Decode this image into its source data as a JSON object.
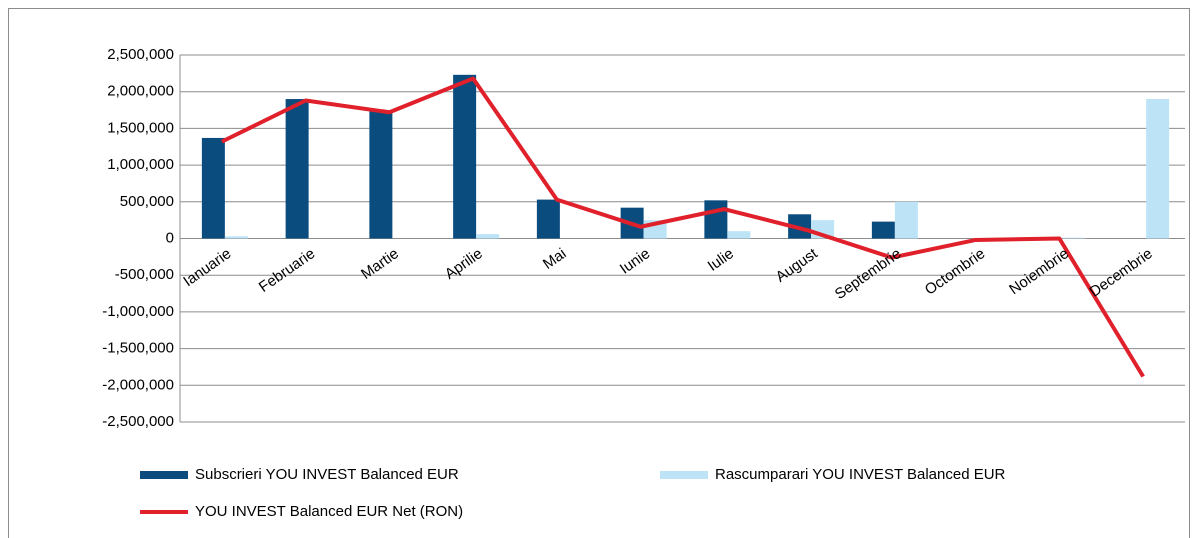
{
  "chart_data": {
    "type": "bar_line",
    "categories": [
      "Ianuarie",
      "Februarie",
      "Martie",
      "Aprilie",
      "Mai",
      "Iunie",
      "Iulie",
      "August",
      "Septembrie",
      "Octombrie",
      "Noiembrie",
      "Decembrie"
    ],
    "series": [
      {
        "name": "Subscrieri YOU INVEST Balanced EUR",
        "color": "#0b4c7f",
        "kind": "bar",
        "values": [
          1370000,
          1900000,
          1730000,
          2230000,
          530000,
          420000,
          520000,
          330000,
          230000,
          0,
          0,
          0
        ]
      },
      {
        "name": "Rascumparari YOU INVEST Balanced EUR",
        "color": "#bde3f7",
        "kind": "bar",
        "values": [
          30000,
          0,
          0,
          60000,
          0,
          250000,
          100000,
          250000,
          500000,
          0,
          10000,
          1900000
        ]
      },
      {
        "name": "YOU INVEST Balanced EUR Net (RON)",
        "color": "#e0202a",
        "kind": "line",
        "values": [
          1320000,
          1880000,
          1720000,
          2180000,
          530000,
          160000,
          400000,
          110000,
          -260000,
          -20000,
          0,
          -1880000
        ]
      }
    ],
    "ylim": [
      -2500000,
      2500000
    ],
    "yticks": [
      {
        "value": -2500000,
        "label": "-2,500,000"
      },
      {
        "value": -2000000,
        "label": "-2,000,000"
      },
      {
        "value": -1500000,
        "label": "-1,500,000"
      },
      {
        "value": -1000000,
        "label": "-1,000,000"
      },
      {
        "value": -500000,
        "label": "-500,000"
      },
      0,
      {
        "value": 500000,
        "label": "500,000"
      },
      {
        "value": 1000000,
        "label": "1,000,000"
      },
      {
        "value": 1500000,
        "label": "1,500,000"
      },
      {
        "value": 2000000,
        "label": "2,000,000"
      },
      {
        "value": 2500000,
        "label": "2,500,000"
      }
    ],
    "grid": true
  }
}
